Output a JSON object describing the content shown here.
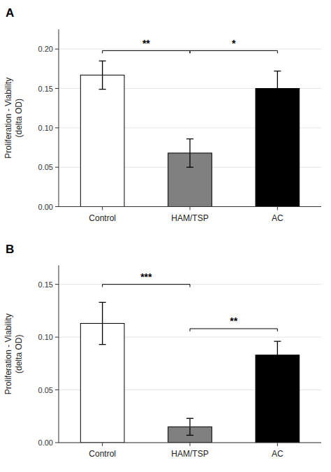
{
  "chart_data": [
    {
      "type": "bar",
      "title": "A",
      "categories": [
        "Control",
        "HAM/TSP",
        "AC"
      ],
      "values": [
        0.167,
        0.068,
        0.15
      ],
      "errors": [
        0.018,
        0.018,
        0.022
      ],
      "colors": [
        "white",
        "#808080",
        "black"
      ],
      "ylabel": "Proliferation - Viability\n(delta OD)",
      "ylim": [
        0,
        0.225
      ],
      "yticks": [
        {
          "value": 0,
          "label": "0.00"
        },
        0.05,
        {
          "value": 0.1,
          "label": "0.10"
        },
        0.15,
        {
          "value": 0.2,
          "label": "0.20"
        }
      ],
      "annotations": [
        {
          "text": "**",
          "from": "Control",
          "to": "HAM/TSP",
          "y": 0.198,
          "text_offset": 0.005
        },
        {
          "text": "*",
          "from": "HAM/TSP",
          "to": "AC",
          "y": 0.198,
          "text_offset": 0.005
        }
      ]
    },
    {
      "type": "bar",
      "title": "B",
      "categories": [
        "Control",
        "HAM/TSP",
        "AC"
      ],
      "values": [
        0.113,
        0.015,
        0.083
      ],
      "errors": [
        0.02,
        0.008,
        0.013
      ],
      "colors": [
        "white",
        "#808080",
        "black"
      ],
      "ylabel": "Proliferation - Viability\n(delta OD)",
      "ylim": [
        0,
        0.168
      ],
      "yticks": [
        {
          "value": 0,
          "label": "0.00"
        },
        0.05,
        {
          "value": 0.1,
          "label": "0.10"
        },
        0.15
      ],
      "annotations": [
        {
          "text": "***",
          "from": "Control",
          "to": "HAM/TSP",
          "y": 0.15,
          "text_offset": 0.004
        },
        {
          "text": "**",
          "from": "HAM/TSP",
          "to": "AC",
          "y": 0.108,
          "text_offset": 0.004
        }
      ]
    }
  ]
}
